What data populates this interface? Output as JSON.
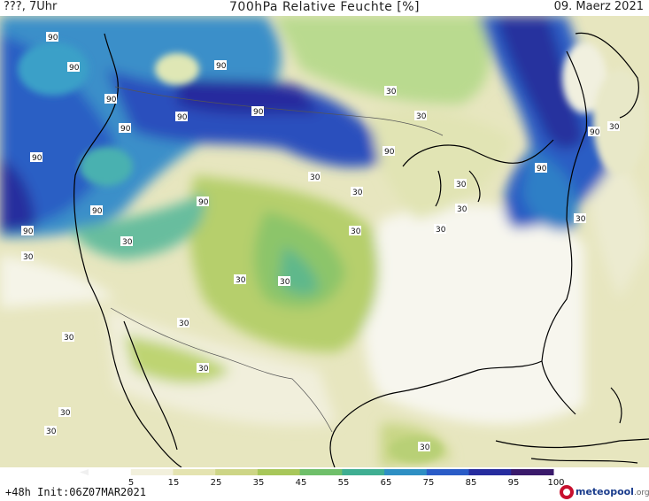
{
  "header": {
    "left": "???, 7Uhr",
    "title": "700hPa Relative Feuchte [%]",
    "date": "09. Maerz 2021"
  },
  "footer": {
    "run_info": "+48h Init:06Z07MAR2021"
  },
  "logo": {
    "name": "meteopool",
    "tld": ".org"
  },
  "legend": {
    "ticks": [
      "5",
      "15",
      "25",
      "35",
      "45",
      "55",
      "65",
      "75",
      "85",
      "95",
      "100"
    ],
    "colors": [
      "#ffffff",
      "#f2f0dc",
      "#e4e3b0",
      "#cdd586",
      "#a8c75a",
      "#6fbf6a",
      "#3fae92",
      "#2e8fc3",
      "#2a5cc7",
      "#262c9e",
      "#3a1a6b"
    ]
  },
  "map": {
    "contour_labels": [
      {
        "text": "90"
      },
      {
        "text": "90"
      },
      {
        "text": "90"
      },
      {
        "text": "90"
      },
      {
        "text": "90"
      },
      {
        "text": "90"
      },
      {
        "text": "90"
      },
      {
        "text": "90"
      },
      {
        "text": "90"
      },
      {
        "text": "90"
      },
      {
        "text": "90"
      },
      {
        "text": "90"
      },
      {
        "text": "90"
      },
      {
        "text": "90"
      },
      {
        "text": "90"
      },
      {
        "text": "30"
      },
      {
        "text": "30"
      },
      {
        "text": "30"
      },
      {
        "text": "30"
      },
      {
        "text": "30"
      },
      {
        "text": "30"
      },
      {
        "text": "30"
      },
      {
        "text": "30"
      },
      {
        "text": "30"
      },
      {
        "text": "30"
      },
      {
        "text": "30"
      },
      {
        "text": "30"
      },
      {
        "text": "30"
      },
      {
        "text": "30"
      },
      {
        "text": "30"
      },
      {
        "text": "30"
      },
      {
        "text": "30"
      },
      {
        "text": "30"
      },
      {
        "text": "30"
      },
      {
        "text": "30"
      }
    ]
  }
}
